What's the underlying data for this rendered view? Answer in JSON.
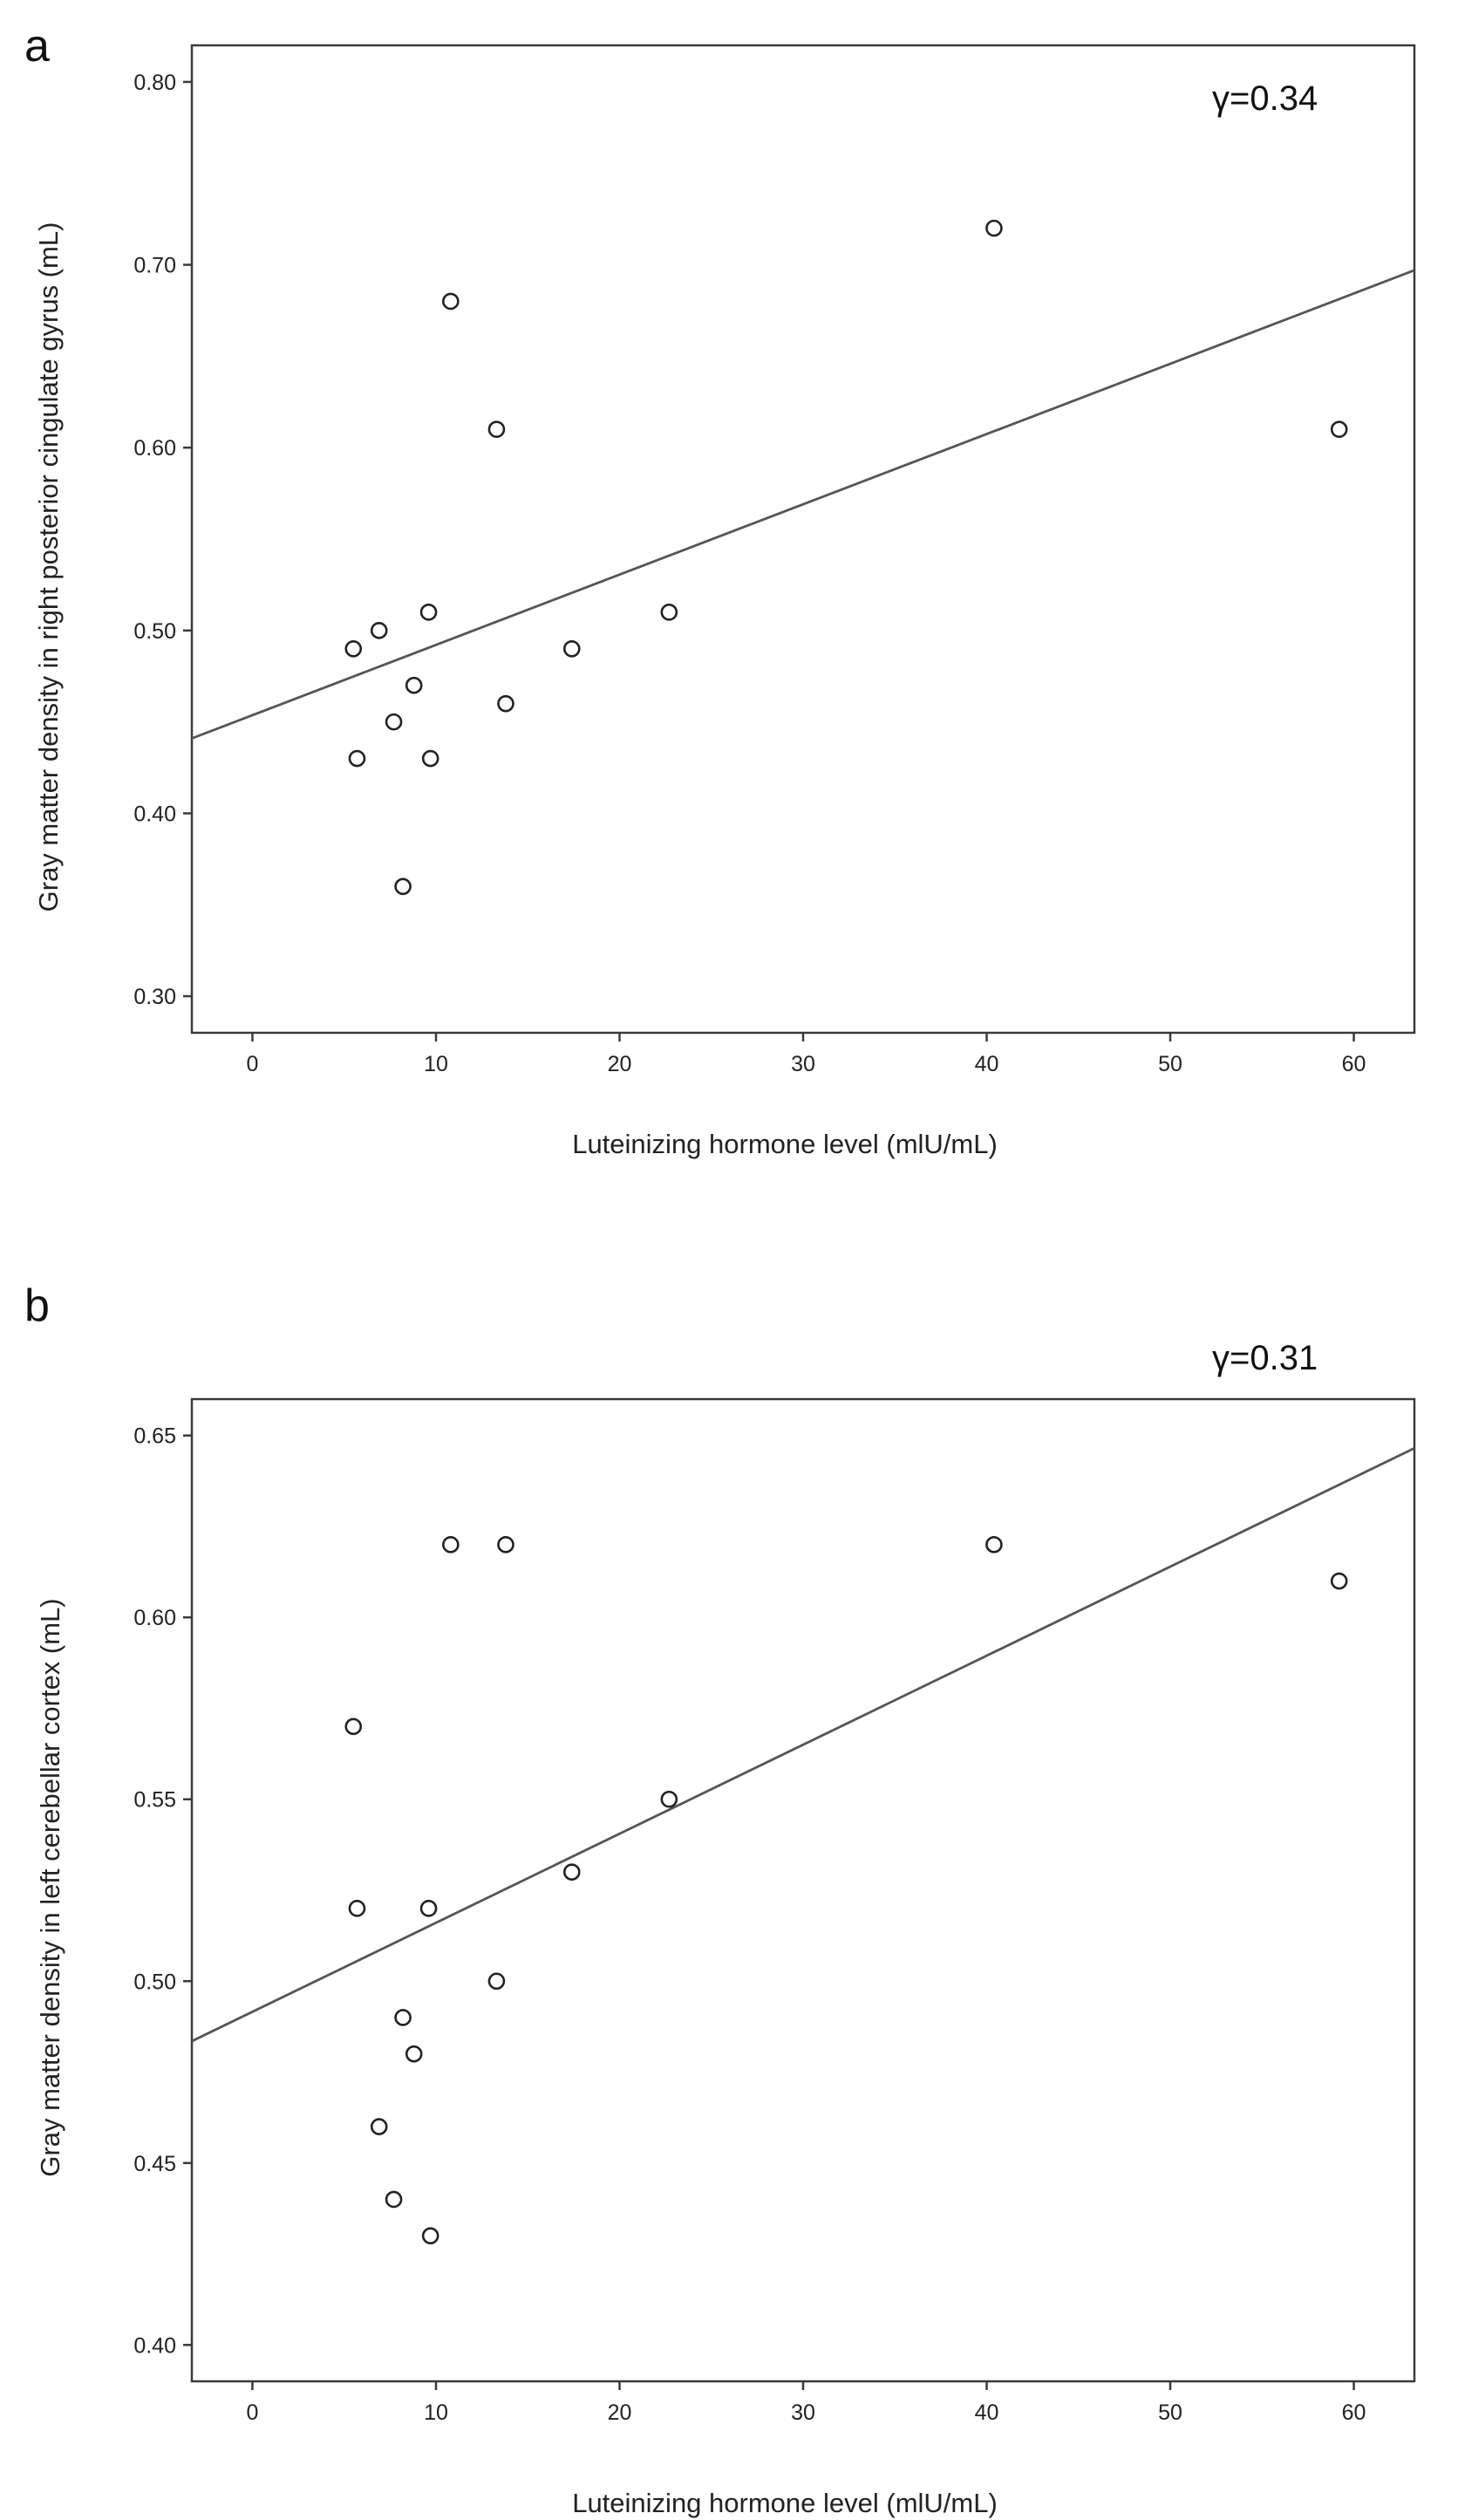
{
  "chart_data": [
    {
      "type": "scatter",
      "panel_label": "a",
      "annotation": "γ=0.34",
      "xlabel": "Luteinizing hormone level (mlU/mL)",
      "ylabel": "Gray matter density in right posterior cingulate gyrus (mL)",
      "xlim": [
        -3.3,
        63.3
      ],
      "ylim": [
        0.28,
        0.82
      ],
      "xticks": [
        0,
        10,
        20,
        30,
        40,
        50,
        60
      ],
      "xtick_labels": [
        "0",
        "10",
        "20",
        "30",
        "40",
        "50",
        "60"
      ],
      "yticks": [
        0.3,
        0.4,
        0.5,
        0.6,
        0.7,
        0.8
      ],
      "ytick_labels": [
        "0.30",
        "0.40",
        "0.50",
        "0.60",
        "0.70",
        "0.80"
      ],
      "points": [
        {
          "x": 5.5,
          "y": 0.49
        },
        {
          "x": 5.7,
          "y": 0.43
        },
        {
          "x": 6.9,
          "y": 0.5
        },
        {
          "x": 7.7,
          "y": 0.45
        },
        {
          "x": 8.2,
          "y": 0.36
        },
        {
          "x": 8.8,
          "y": 0.47
        },
        {
          "x": 9.6,
          "y": 0.51
        },
        {
          "x": 9.7,
          "y": 0.43
        },
        {
          "x": 10.8,
          "y": 0.68
        },
        {
          "x": 13.3,
          "y": 0.61
        },
        {
          "x": 13.8,
          "y": 0.46
        },
        {
          "x": 17.4,
          "y": 0.49
        },
        {
          "x": 22.7,
          "y": 0.51
        },
        {
          "x": 40.4,
          "y": 0.72
        },
        {
          "x": 59.2,
          "y": 0.61
        }
      ],
      "fit_line": {
        "x": [
          -3.3,
          63.3
        ],
        "y": [
          0.441,
          0.697
        ]
      }
    },
    {
      "type": "scatter",
      "panel_label": "b",
      "annotation": "γ=0.31",
      "xlabel": "Luteinizing hormone level (mlU/mL)",
      "ylabel": "Gray matter density in left cerebellar cortex (mL)",
      "xlim": [
        -3.3,
        63.3
      ],
      "ylim": [
        0.39,
        0.66
      ],
      "xticks": [
        0,
        10,
        20,
        30,
        40,
        50,
        60
      ],
      "xtick_labels": [
        "0",
        "10",
        "20",
        "30",
        "40",
        "50",
        "60"
      ],
      "yticks": [
        0.4,
        0.45,
        0.5,
        0.55,
        0.6,
        0.65
      ],
      "ytick_labels": [
        "0.40",
        "0.45",
        "0.50",
        "0.55",
        "0.60",
        "0.65"
      ],
      "points": [
        {
          "x": 5.5,
          "y": 0.57
        },
        {
          "x": 5.7,
          "y": 0.52
        },
        {
          "x": 6.9,
          "y": 0.46
        },
        {
          "x": 7.7,
          "y": 0.44
        },
        {
          "x": 8.2,
          "y": 0.49
        },
        {
          "x": 8.8,
          "y": 0.48
        },
        {
          "x": 9.6,
          "y": 0.52
        },
        {
          "x": 9.7,
          "y": 0.43
        },
        {
          "x": 10.8,
          "y": 0.62
        },
        {
          "x": 13.3,
          "y": 0.5
        },
        {
          "x": 13.8,
          "y": 0.62
        },
        {
          "x": 17.4,
          "y": 0.53
        },
        {
          "x": 22.7,
          "y": 0.55
        },
        {
          "x": 40.4,
          "y": 0.62
        },
        {
          "x": 59.2,
          "y": 0.61
        }
      ],
      "fit_line": {
        "x": [
          -3.3,
          63.3
        ],
        "y": [
          0.4835,
          0.6465
        ]
      }
    }
  ]
}
